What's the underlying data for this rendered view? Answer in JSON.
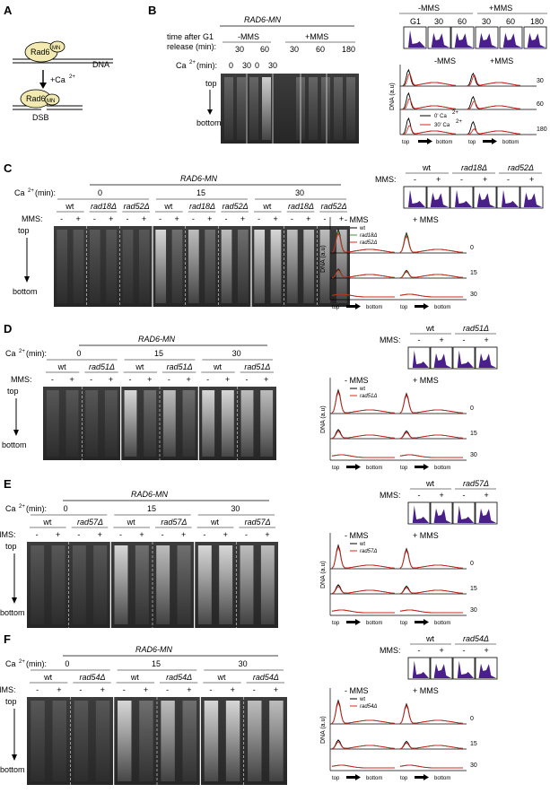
{
  "common": {
    "strain": "RAD6-MN",
    "ca": "Ca",
    "ca_unit": "(min):",
    "mms_label": "MMS:",
    "minus_mms": "-MMS",
    "plus_mms": "+MMS",
    "minus_mms_spaced": "- MMS",
    "plus_mms_spaced": "+ MMS",
    "minus": "-",
    "plus": "+",
    "top": "top",
    "bottom": "bottom",
    "dna": "DNA (a.u)",
    "delta": "Δ"
  },
  "panelA": {
    "label": "A",
    "rad6": "Rad6",
    "mn": "MN",
    "dna": "DNA",
    "ca": "+Ca",
    "dsb": "DSB"
  },
  "panelB": {
    "label": "B",
    "time_label_1": "time after G1",
    "time_label_2": "release (min):",
    "minus_times": [
      "30",
      "60"
    ],
    "plus_times": [
      "30",
      "60",
      "180"
    ],
    "ca_values": [
      "0",
      "30",
      "0",
      "30"
    ],
    "fc_labels": [
      "G1",
      "30",
      "60",
      "30",
      "60",
      "180"
    ],
    "trace_times": [
      "30",
      "60",
      "180"
    ],
    "legend": [
      "0' Ca",
      "30' Ca"
    ]
  },
  "panelC": {
    "label": "C",
    "ca_times": [
      "0",
      "15",
      "30"
    ],
    "strains": [
      "wt",
      "rad18",
      "rad52"
    ],
    "legend": [
      "wt",
      "rad18",
      "rad52"
    ],
    "trace_times": [
      "0",
      "15",
      "30"
    ]
  },
  "panelD": {
    "label": "D",
    "ca_times": [
      "0",
      "15",
      "30"
    ],
    "strains": [
      "wt",
      "rad51"
    ],
    "legend": [
      "wt",
      "rad51"
    ],
    "trace_times": [
      "0",
      "15",
      "30"
    ]
  },
  "panelE": {
    "label": "E",
    "ca_times": [
      "0",
      "15",
      "30"
    ],
    "strains": [
      "wt",
      "rad57"
    ],
    "legend": [
      "wt",
      "rad57"
    ],
    "trace_times": [
      "0",
      "15",
      "30"
    ]
  },
  "panelF": {
    "label": "F",
    "ca_times": [
      "0",
      "15",
      "30"
    ],
    "strains": [
      "wt",
      "rad54"
    ],
    "legend": [
      "wt",
      "rad54"
    ],
    "trace_times": [
      "0",
      "15",
      "30"
    ]
  },
  "colors": {
    "black": "#000000",
    "red": "#d42a1e",
    "green": "#3a9a3a",
    "purple": "#4a1f8c",
    "gel": "#2a2a2a"
  }
}
